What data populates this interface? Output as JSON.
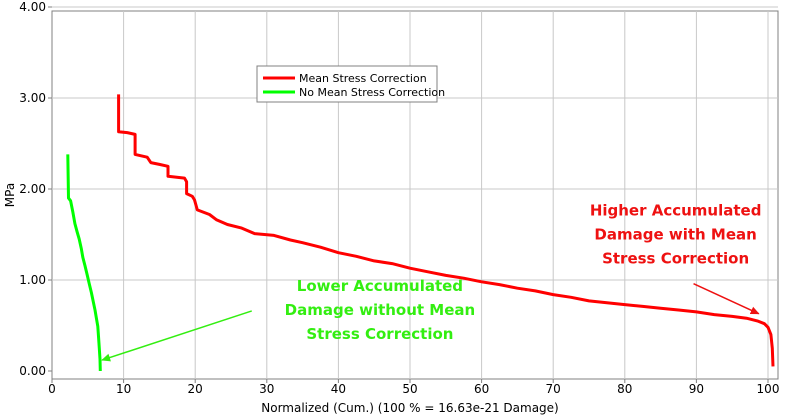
{
  "chart_data": {
    "type": "line",
    "title": "",
    "xlabel": "Normalized (Cum.) (100 % = 16.63e-21 Damage)",
    "ylabel": "MPa",
    "xlim": [
      0,
      101
    ],
    "ylim": [
      0,
      4.0
    ],
    "x_ticks": [
      "0",
      "10",
      "20",
      "30",
      "40",
      "50",
      "60",
      "70",
      "80",
      "90",
      "100"
    ],
    "y_ticks": [
      "0.00",
      "1.00",
      "2.00",
      "3.00",
      "4.00"
    ],
    "grid": true,
    "legend_position": "top-center",
    "series": [
      {
        "name": "Mean Stress Correction",
        "color": "#ff0000",
        "points": [
          [
            9.3,
            3.04
          ],
          [
            9.3,
            2.63
          ],
          [
            10.5,
            2.62
          ],
          [
            11.6,
            2.6
          ],
          [
            11.6,
            2.38
          ],
          [
            13.3,
            2.35
          ],
          [
            13.8,
            2.29
          ],
          [
            15.0,
            2.27
          ],
          [
            16.2,
            2.25
          ],
          [
            16.2,
            2.14
          ],
          [
            18.5,
            2.12
          ],
          [
            18.8,
            2.08
          ],
          [
            18.8,
            1.95
          ],
          [
            19.6,
            1.92
          ],
          [
            19.9,
            1.88
          ],
          [
            20.3,
            1.77
          ],
          [
            22.0,
            1.72
          ],
          [
            23.0,
            1.66
          ],
          [
            24.5,
            1.61
          ],
          [
            26.5,
            1.57
          ],
          [
            28.3,
            1.51
          ],
          [
            31.0,
            1.49
          ],
          [
            33.3,
            1.44
          ],
          [
            35.0,
            1.41
          ],
          [
            37.5,
            1.36
          ],
          [
            40.0,
            1.3
          ],
          [
            42.5,
            1.26
          ],
          [
            45.0,
            1.21
          ],
          [
            47.5,
            1.18
          ],
          [
            50.0,
            1.13
          ],
          [
            52.5,
            1.09
          ],
          [
            55.0,
            1.05
          ],
          [
            57.5,
            1.02
          ],
          [
            60.0,
            0.98
          ],
          [
            62.5,
            0.95
          ],
          [
            65.0,
            0.91
          ],
          [
            67.5,
            0.88
          ],
          [
            70.0,
            0.84
          ],
          [
            72.5,
            0.81
          ],
          [
            75.0,
            0.77
          ],
          [
            77.5,
            0.75
          ],
          [
            80.0,
            0.73
          ],
          [
            82.5,
            0.71
          ],
          [
            85.0,
            0.69
          ],
          [
            87.5,
            0.67
          ],
          [
            90.0,
            0.65
          ],
          [
            92.5,
            0.62
          ],
          [
            95.0,
            0.6
          ],
          [
            97.0,
            0.58
          ],
          [
            98.5,
            0.55
          ],
          [
            99.5,
            0.52
          ],
          [
            100.0,
            0.48
          ],
          [
            100.4,
            0.4
          ],
          [
            100.6,
            0.25
          ],
          [
            100.7,
            0.05
          ]
        ]
      },
      {
        "name": "No Mean Stress Correction",
        "color": "#00ff00",
        "points": [
          [
            2.2,
            2.38
          ],
          [
            2.3,
            1.9
          ],
          [
            2.6,
            1.87
          ],
          [
            2.9,
            1.75
          ],
          [
            3.2,
            1.62
          ],
          [
            3.5,
            1.53
          ],
          [
            3.8,
            1.45
          ],
          [
            4.1,
            1.34
          ],
          [
            4.3,
            1.25
          ],
          [
            4.6,
            1.16
          ],
          [
            4.9,
            1.06
          ],
          [
            5.2,
            0.96
          ],
          [
            5.5,
            0.86
          ],
          [
            5.8,
            0.75
          ],
          [
            6.0,
            0.67
          ],
          [
            6.2,
            0.58
          ],
          [
            6.4,
            0.49
          ],
          [
            6.5,
            0.38
          ],
          [
            6.6,
            0.25
          ],
          [
            6.7,
            0.13
          ],
          [
            6.75,
            0.0
          ]
        ]
      }
    ],
    "annotations": [
      {
        "lines": [
          "Lower Accumulated",
          "Damage without Mean",
          "Stress Correction"
        ],
        "color": "#33ee11",
        "anchor_data": [
          45.8,
          0.88
        ],
        "arrow_from": [
          27.9,
          0.66
        ],
        "arrow_to": [
          7.0,
          0.12
        ]
      },
      {
        "lines": [
          "Higher Accumulated",
          "Damage with Mean",
          "Stress Correction"
        ],
        "color": "#ee1111",
        "anchor_data": [
          87.1,
          1.71
        ],
        "arrow_from": [
          89.6,
          0.96
        ],
        "arrow_to": [
          98.7,
          0.63
        ]
      }
    ]
  }
}
